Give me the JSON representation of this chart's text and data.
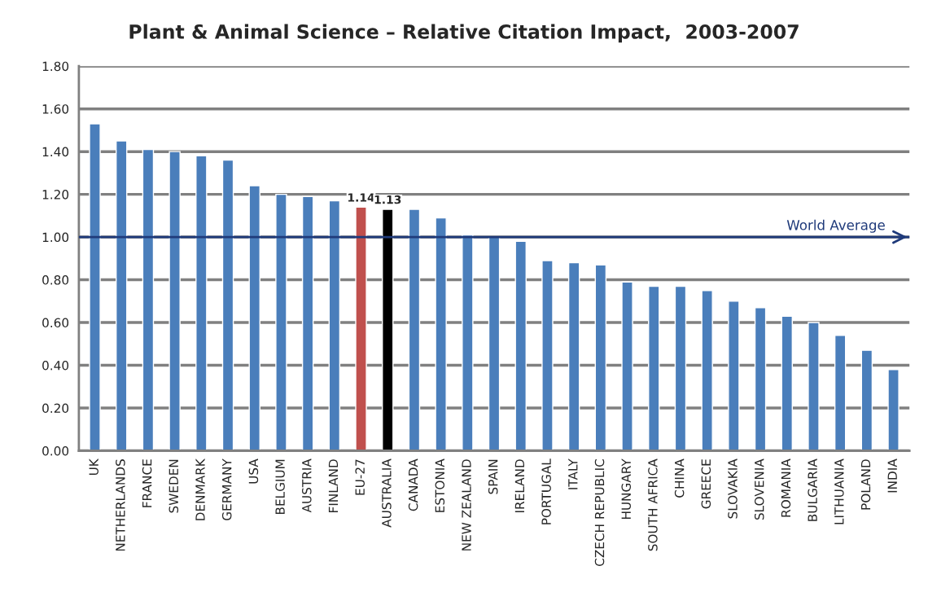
{
  "chart_data": {
    "type": "bar",
    "title": "Plant & Animal Science – Relative Citation Impact,  2003-2007",
    "categories": [
      "UK",
      "NETHERLANDS",
      "FRANCE",
      "SWEDEN",
      "DENMARK",
      "GERMANY",
      "USA",
      "BELGIUM",
      "AUSTRIA",
      "FINLAND",
      "EU-27",
      "AUSTRALIA",
      "CANADA",
      "ESTONIA",
      "NEW ZEALAND",
      "SPAIN",
      "IRELAND",
      "PORTUGAL",
      "ITALY",
      "CZECH REPUBLIC",
      "HUNGARY",
      "SOUTH AFRICA",
      "CHINA",
      "GREECE",
      "SLOVAKIA",
      "SLOVENIA",
      "ROMANIA",
      "BULGARIA",
      "LITHUANIA",
      "POLAND",
      "INDIA"
    ],
    "values": [
      1.53,
      1.45,
      1.41,
      1.4,
      1.38,
      1.36,
      1.24,
      1.2,
      1.19,
      1.17,
      1.14,
      1.13,
      1.13,
      1.09,
      1.01,
      1.0,
      0.98,
      0.89,
      0.88,
      0.87,
      0.79,
      0.77,
      0.77,
      0.75,
      0.7,
      0.67,
      0.63,
      0.6,
      0.54,
      0.47,
      0.38
    ],
    "colors": [
      "#4a7ebb",
      "#4a7ebb",
      "#4a7ebb",
      "#4a7ebb",
      "#4a7ebb",
      "#4a7ebb",
      "#4a7ebb",
      "#4a7ebb",
      "#4a7ebb",
      "#4a7ebb",
      "#c0504d",
      "#000000",
      "#4a7ebb",
      "#4a7ebb",
      "#4a7ebb",
      "#4a7ebb",
      "#4a7ebb",
      "#4a7ebb",
      "#4a7ebb",
      "#4a7ebb",
      "#4a7ebb",
      "#4a7ebb",
      "#4a7ebb",
      "#4a7ebb",
      "#4a7ebb",
      "#4a7ebb",
      "#4a7ebb",
      "#4a7ebb",
      "#4a7ebb",
      "#4a7ebb",
      "#4a7ebb"
    ],
    "value_labels": [
      null,
      null,
      null,
      null,
      null,
      null,
      null,
      null,
      null,
      null,
      "1.14",
      "1.13",
      null,
      null,
      null,
      null,
      null,
      null,
      null,
      null,
      null,
      null,
      null,
      null,
      null,
      null,
      null,
      null,
      null,
      null,
      null
    ],
    "ylim": [
      0,
      1.8
    ],
    "yticks": [
      {
        "value": 0,
        "label": "0.00"
      },
      {
        "value": 0.2,
        "label": "0.20"
      },
      {
        "value": 0.4,
        "label": "0.40"
      },
      {
        "value": 0.6,
        "label": "0.60"
      },
      {
        "value": 0.8,
        "label": "0.80"
      },
      {
        "value": 1.0,
        "label": "1.00"
      },
      {
        "value": 1.2,
        "label": "1.20"
      },
      {
        "value": 1.4,
        "label": "1.40"
      },
      {
        "value": 1.6,
        "label": "1.60"
      },
      {
        "value": 1.8,
        "label": "1.80"
      }
    ],
    "grid": "y",
    "ref_lines": [
      {
        "axis": "y",
        "value": 1.0,
        "label": "World Average",
        "color": "#1f3a7a"
      }
    ]
  }
}
